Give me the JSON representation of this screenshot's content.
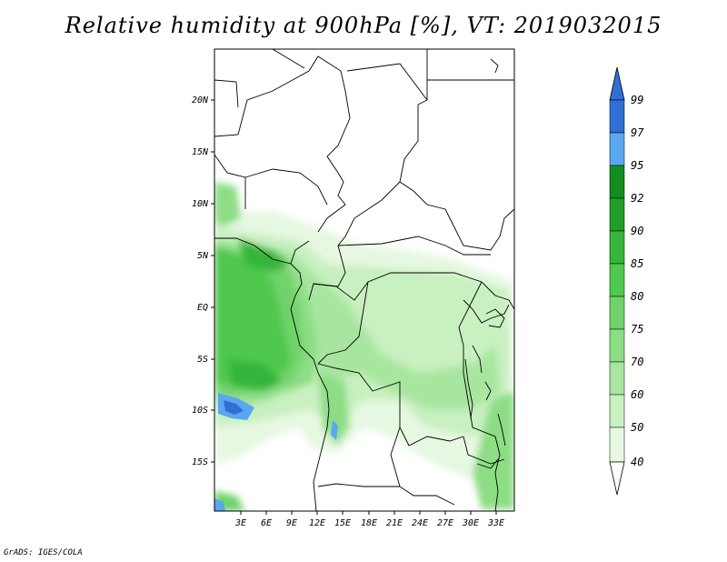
{
  "title": "Relative humidity at 900hPa [%], VT: 2019032015",
  "credit": "GrADS: IGES/COLA",
  "map": {
    "lat_labels": [
      "20N",
      "15N",
      "10N",
      "5N",
      "EQ",
      "5S",
      "10S",
      "15S"
    ],
    "lon_labels": [
      "3E",
      "6E",
      "9E",
      "12E",
      "15E",
      "18E",
      "21E",
      "24E",
      "27E",
      "30E",
      "33E"
    ],
    "region": "Central Africa",
    "lon_range_deg": [
      0,
      35
    ],
    "lat_range_deg": [
      -20,
      25
    ]
  },
  "colorbar": {
    "labels": [
      "99",
      "97",
      "95",
      "92",
      "90",
      "85",
      "80",
      "75",
      "70",
      "60",
      "50",
      "40"
    ],
    "levels": [
      {
        "label": "40",
        "color": "#ffffff"
      },
      {
        "label": "50",
        "color": "#e6f8e1"
      },
      {
        "label": "60",
        "color": "#c8f0c0"
      },
      {
        "label": "70",
        "color": "#a8e6a0"
      },
      {
        "label": "75",
        "color": "#8ddd85"
      },
      {
        "label": "80",
        "color": "#6fd36a"
      },
      {
        "label": "85",
        "color": "#4fc84d"
      },
      {
        "label": "90",
        "color": "#35b53a"
      },
      {
        "label": "92",
        "color": "#1f9f2a"
      },
      {
        "label": "95",
        "color": "#138d1e"
      },
      {
        "label": "97",
        "color": "#5aa7f0"
      },
      {
        "label": "99",
        "color": "#2f6fd6"
      }
    ],
    "top_arrow_color": "#2f6fd6",
    "bottom_arrow_color": "#ffffff"
  }
}
